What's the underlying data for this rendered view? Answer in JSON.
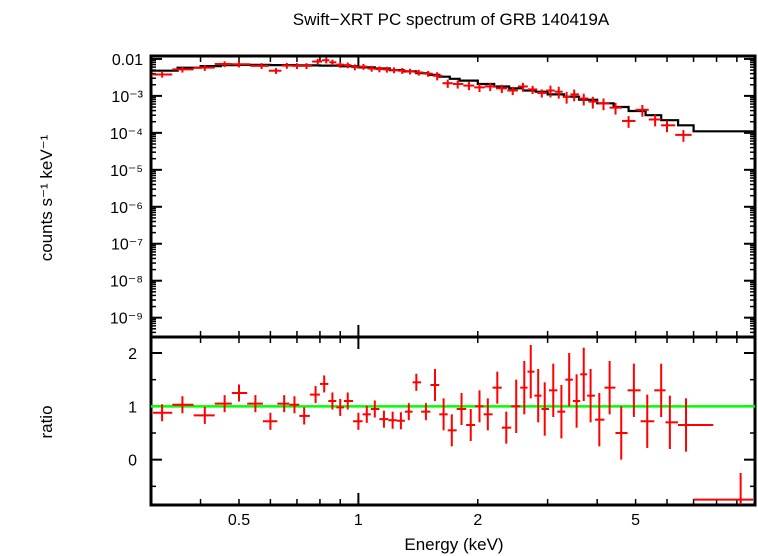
{
  "chart_data": [
    {
      "type": "scatter",
      "title": "Swift−XRT PC spectrum of GRB 140419A",
      "ylabel": "counts s⁻¹ keV⁻¹",
      "xscale": "log",
      "yscale": "log",
      "xlim": [
        0.3,
        10
      ],
      "ylim": [
        3e-10,
        0.012
      ],
      "y_ticks": [
        {
          "value": 0.01,
          "label": "0.01"
        },
        {
          "value": 0.001,
          "label": "10⁻³"
        },
        {
          "value": 0.0001,
          "label": "10⁻⁴"
        },
        {
          "value": 1e-05,
          "label": "10⁻⁵"
        },
        {
          "value": 1e-06,
          "label": "10⁻⁶"
        },
        {
          "value": 1e-07,
          "label": "10⁻⁷"
        },
        {
          "value": 1e-08,
          "label": "10⁻⁸"
        },
        {
          "value": 1e-09,
          "label": "10⁻⁹"
        }
      ],
      "colors": {
        "data": "#ff0000",
        "model": "#000000"
      },
      "series": [
        {
          "x": [
            0.32,
            0.36,
            0.41,
            0.46,
            0.5,
            0.57,
            0.62,
            0.66,
            0.7,
            0.74,
            0.79,
            0.83,
            0.86,
            0.9,
            0.94,
            0.98,
            1.03,
            1.08,
            1.13,
            1.18,
            1.23,
            1.29,
            1.35,
            1.42,
            1.5,
            1.58,
            1.68,
            1.78,
            1.9,
            2.02,
            2.15,
            2.3,
            2.45,
            2.6,
            2.75,
            2.9,
            3.05,
            3.2,
            3.35,
            3.5,
            3.7,
            3.9,
            4.15,
            4.45,
            4.8,
            5.2,
            5.6,
            6.0,
            6.6
          ],
          "y": [
            0.0038,
            0.0052,
            0.0058,
            0.0073,
            0.0072,
            0.0065,
            0.0048,
            0.0066,
            0.0065,
            0.0065,
            0.0085,
            0.0092,
            0.0081,
            0.007,
            0.0068,
            0.006,
            0.0062,
            0.0055,
            0.0053,
            0.0052,
            0.005,
            0.0048,
            0.0046,
            0.0043,
            0.004,
            0.0035,
            0.0022,
            0.0021,
            0.0019,
            0.0017,
            0.0018,
            0.0016,
            0.0014,
            0.0018,
            0.0015,
            0.0012,
            0.0014,
            0.0013,
            0.00095,
            0.0011,
            0.00085,
            0.0007,
            0.00063,
            0.00048,
            0.00021,
            0.00042,
            0.00023,
            0.00016,
            8.8e-05
          ]
        },
        {
          "model_x": [
            0.3,
            0.35,
            0.4,
            0.45,
            0.5,
            0.6,
            0.7,
            0.8,
            0.9,
            1.0,
            1.1,
            1.2,
            1.3,
            1.4,
            1.5,
            1.6,
            1.7,
            1.8,
            2.0,
            2.2,
            2.4,
            2.6,
            2.8,
            3.0,
            3.3,
            3.6,
            4.0,
            4.4,
            4.8,
            5.3,
            5.8,
            6.4,
            7.0,
            10.0
          ],
          "model_y": [
            0.0048,
            0.0058,
            0.0064,
            0.0068,
            0.0069,
            0.0068,
            0.0067,
            0.0066,
            0.0063,
            0.0059,
            0.0055,
            0.005,
            0.0046,
            0.0041,
            0.0037,
            0.0033,
            0.0029,
            0.0026,
            0.0021,
            0.0018,
            0.0016,
            0.0014,
            0.0013,
            0.0011,
            0.00095,
            0.00079,
            0.00063,
            0.0005,
            0.00039,
            0.0003,
            0.00022,
            0.00016,
            0.00011,
            2.5e-05
          ]
        }
      ]
    },
    {
      "type": "scatter",
      "xlabel": "Energy (keV)",
      "ylabel": "ratio",
      "xscale": "log",
      "xlim": [
        0.3,
        10
      ],
      "ylim": [
        -0.85,
        2.3
      ],
      "x_ticks": [
        {
          "value": 0.5,
          "label": "0.5"
        },
        {
          "value": 1,
          "label": "1"
        },
        {
          "value": 2,
          "label": "2"
        },
        {
          "value": 5,
          "label": "5"
        }
      ],
      "y_ticks": [
        {
          "value": 0,
          "label": "0"
        },
        {
          "value": 1,
          "label": "1"
        },
        {
          "value": 2,
          "label": "2"
        }
      ],
      "reference_line": {
        "y": 1,
        "color": "#00ff00"
      },
      "series": [
        {
          "x": [
            0.32,
            0.36,
            0.41,
            0.46,
            0.5,
            0.55,
            0.6,
            0.65,
            0.69,
            0.73,
            0.78,
            0.82,
            0.86,
            0.9,
            0.94,
            1.0,
            1.05,
            1.1,
            1.16,
            1.22,
            1.28,
            1.34,
            1.4,
            1.48,
            1.56,
            1.64,
            1.72,
            1.82,
            1.92,
            2.02,
            2.12,
            2.24,
            2.36,
            2.5,
            2.62,
            2.72,
            2.84,
            2.95,
            3.1,
            3.25,
            3.4,
            3.55,
            3.7,
            3.85,
            4.05,
            4.3,
            4.6,
            4.95,
            5.35,
            5.8,
            6.1,
            6.7,
            9.2
          ],
          "y": [
            0.88,
            1.03,
            0.83,
            1.05,
            1.25,
            1.05,
            0.72,
            1.05,
            1.03,
            0.82,
            1.22,
            1.42,
            1.1,
            0.98,
            1.1,
            0.72,
            0.85,
            0.95,
            0.76,
            0.74,
            0.73,
            0.9,
            1.45,
            0.9,
            1.4,
            0.85,
            0.55,
            0.95,
            0.65,
            1.0,
            0.85,
            1.35,
            0.6,
            1.0,
            1.35,
            1.65,
            1.2,
            0.95,
            1.3,
            0.9,
            1.5,
            1.1,
            1.6,
            1.2,
            0.75,
            1.35,
            0.5,
            1.3,
            0.72,
            1.3,
            0.7,
            0.65,
            -0.75
          ]
        }
      ]
    }
  ]
}
